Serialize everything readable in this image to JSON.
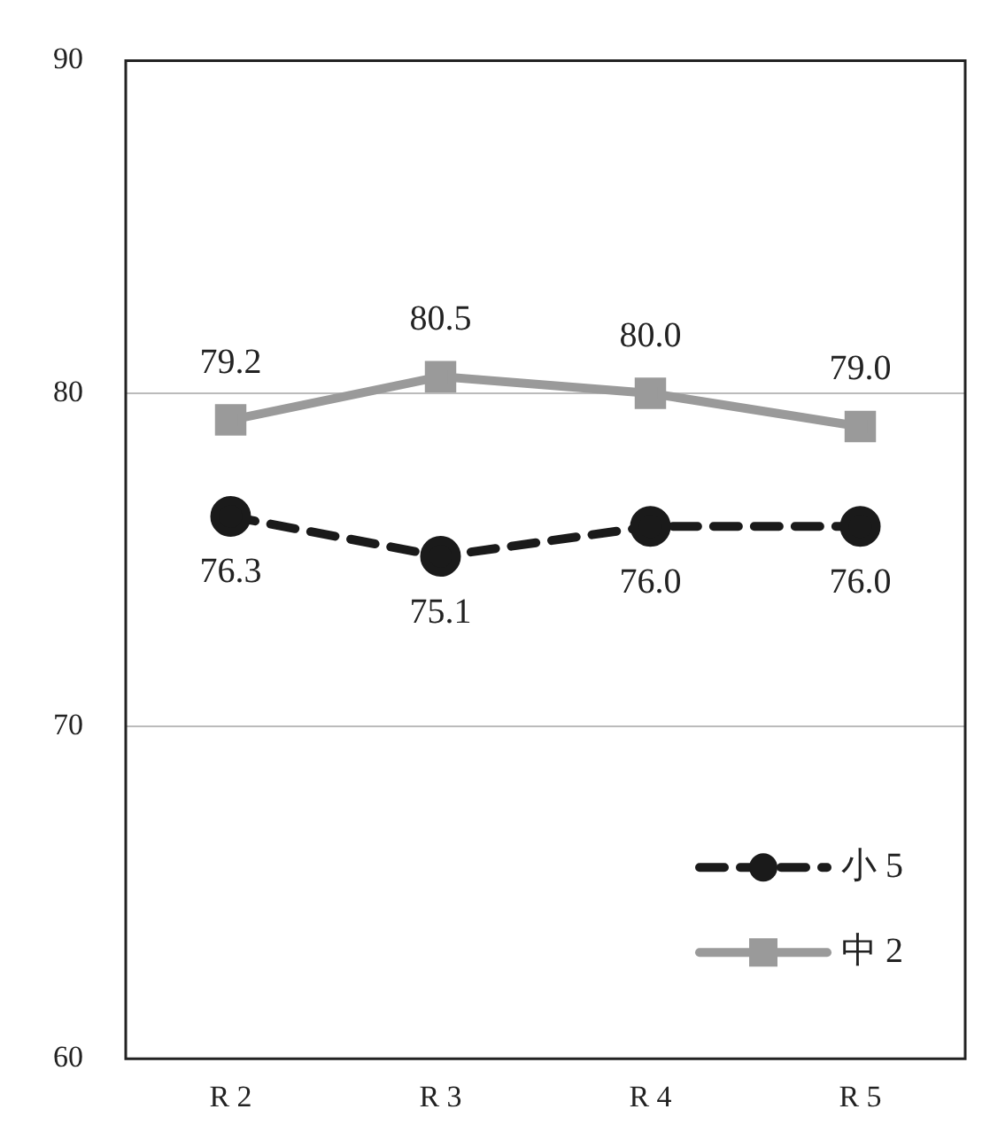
{
  "chart_data": {
    "type": "line",
    "categories": [
      "R 2",
      "R 3",
      "R 4",
      "R 5"
    ],
    "series": [
      {
        "name": "小 5",
        "color": "#1a1a1a",
        "values": [
          76.3,
          75.1,
          76.0,
          76.0
        ],
        "value_labels": [
          "76.3",
          "75.1",
          "76.0",
          "76.0"
        ],
        "marker": "circle",
        "line_style": "dashed"
      },
      {
        "name": "中 2",
        "color": "#9a9a9a",
        "values": [
          79.2,
          80.5,
          80.0,
          79.0
        ],
        "value_labels": [
          "79.2",
          "80.5",
          "80.0",
          "79.0"
        ],
        "marker": "square",
        "line_style": "solid"
      }
    ],
    "ylim": [
      60,
      90
    ],
    "yticks": [
      60,
      70,
      80,
      90
    ],
    "grid": "y",
    "legend": "bottom right"
  }
}
